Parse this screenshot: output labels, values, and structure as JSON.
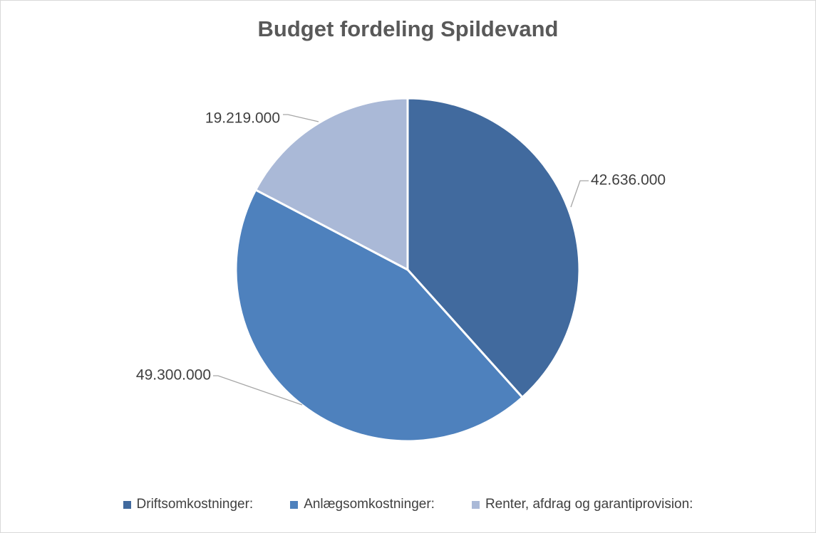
{
  "chart_data": {
    "type": "pie",
    "title": "Budget fordeling Spildevand",
    "categories": [
      "Driftsomkostninger:",
      "Anlægsomkostninger:",
      "Renter, afdrag og garantiprovision:"
    ],
    "values": [
      42636000,
      49300000,
      19219000
    ],
    "data_labels": [
      "42.636.000",
      "49.300.000",
      "19.219.000"
    ],
    "colors": [
      "#416a9e",
      "#4e81bd",
      "#aab9d7"
    ],
    "legend_position": "bottom",
    "start_angle_deg": 0,
    "direction": "clockwise"
  }
}
